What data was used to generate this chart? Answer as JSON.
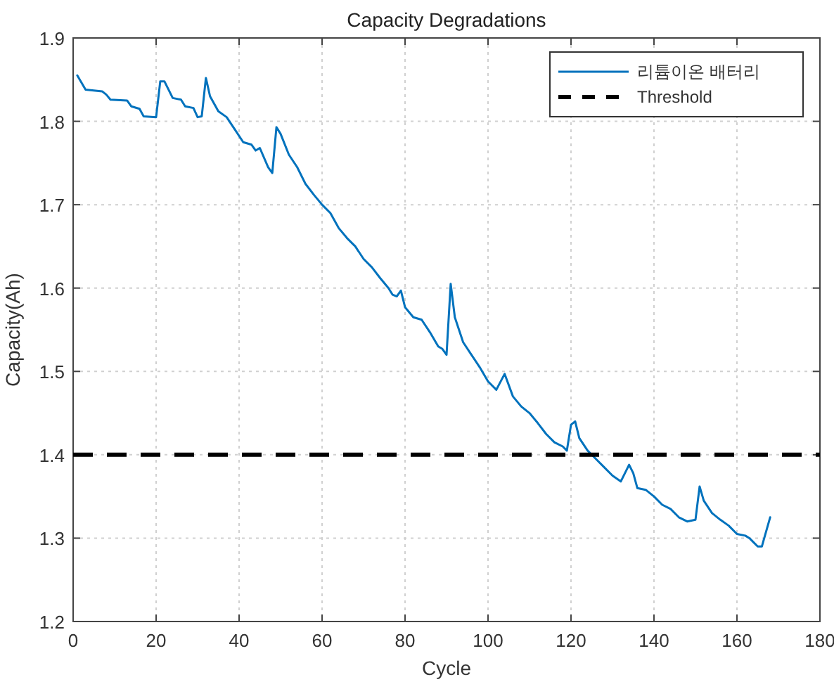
{
  "chart_data": {
    "type": "line",
    "title": "Capacity Degradations",
    "xlabel": "Cycle",
    "ylabel": "Capacity(Ah)",
    "xlim": [
      0,
      180
    ],
    "xticks": [
      0,
      20,
      40,
      60,
      80,
      100,
      120,
      140,
      160,
      180
    ],
    "ylim": [
      1.2,
      1.9
    ],
    "yticks": [
      1.2,
      1.3,
      1.4,
      1.5,
      1.6,
      1.7,
      1.8,
      1.9
    ],
    "grid": true,
    "legend": "top right",
    "line_style": "solid",
    "marker": "none",
    "series": [
      {
        "name": "리튬이온 배터리",
        "color": "#0072bd",
        "x": [
          1,
          3,
          7,
          8,
          9,
          13,
          14,
          16,
          17,
          20,
          21,
          22,
          24,
          26,
          27,
          29,
          30,
          31,
          32,
          33,
          35,
          37,
          39,
          41,
          43,
          44,
          45,
          47,
          48,
          49,
          50,
          52,
          54,
          56,
          58,
          60,
          62,
          64,
          66,
          68,
          70,
          72,
          74,
          76,
          77,
          78,
          79,
          80,
          82,
          84,
          86,
          88,
          89,
          90,
          91,
          92,
          94,
          96,
          98,
          100,
          102,
          104,
          106,
          108,
          110,
          112,
          114,
          116,
          118,
          119,
          120,
          121,
          122,
          124,
          126,
          128,
          130,
          132,
          134,
          135,
          136,
          138,
          140,
          142,
          144,
          146,
          148,
          150,
          151,
          152,
          154,
          156,
          158,
          160,
          162,
          163,
          164,
          165,
          166,
          168
        ],
        "values": [
          1.855,
          1.838,
          1.836,
          1.832,
          1.826,
          1.825,
          1.818,
          1.815,
          1.806,
          1.805,
          1.848,
          1.848,
          1.828,
          1.826,
          1.818,
          1.816,
          1.805,
          1.806,
          1.852,
          1.83,
          1.812,
          1.805,
          1.79,
          1.775,
          1.772,
          1.765,
          1.768,
          1.745,
          1.738,
          1.793,
          1.785,
          1.76,
          1.745,
          1.725,
          1.712,
          1.7,
          1.69,
          1.672,
          1.66,
          1.65,
          1.635,
          1.625,
          1.612,
          1.6,
          1.592,
          1.59,
          1.597,
          1.577,
          1.565,
          1.562,
          1.547,
          1.53,
          1.527,
          1.52,
          1.605,
          1.565,
          1.535,
          1.52,
          1.505,
          1.488,
          1.478,
          1.497,
          1.47,
          1.458,
          1.45,
          1.438,
          1.425,
          1.415,
          1.41,
          1.405,
          1.436,
          1.44,
          1.42,
          1.405,
          1.395,
          1.385,
          1.375,
          1.368,
          1.388,
          1.378,
          1.36,
          1.358,
          1.35,
          1.34,
          1.335,
          1.325,
          1.32,
          1.322,
          1.362,
          1.345,
          1.33,
          1.322,
          1.315,
          1.305,
          1.303,
          1.3,
          1.295,
          1.29,
          1.29,
          1.325
        ]
      }
    ],
    "ref_lines": [
      {
        "axis": "y",
        "value": 1.4,
        "label": "Threshold",
        "color": "#000000",
        "line_style": "dashed"
      }
    ]
  }
}
